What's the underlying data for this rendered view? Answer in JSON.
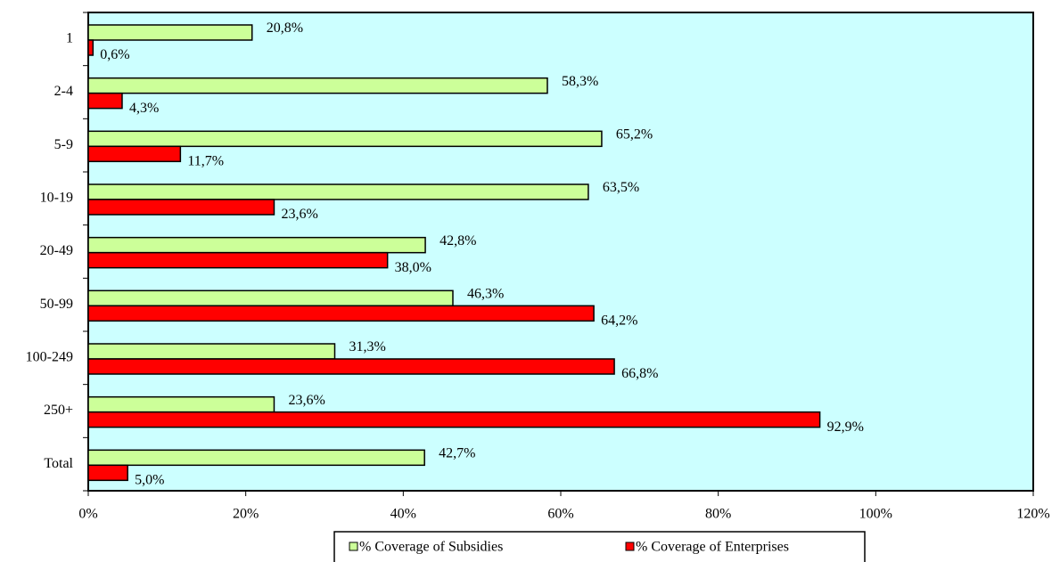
{
  "chart_data": {
    "type": "bar",
    "orientation": "horizontal",
    "categories": [
      "1",
      "2-4",
      "5-9",
      "10-19",
      "20-49",
      "50-99",
      "100-249",
      "250+",
      "Total"
    ],
    "series": [
      {
        "name": "% Coverage of Subsidies",
        "color": "#ccff99",
        "values": [
          20.8,
          58.3,
          65.2,
          63.5,
          42.8,
          46.3,
          31.3,
          23.6,
          42.7
        ],
        "value_labels": [
          "20,8%",
          "58,3%",
          "65,2%",
          "63,5%",
          "42,8%",
          "46,3%",
          "31,3%",
          "23,6%",
          "42,7%"
        ]
      },
      {
        "name": "% Coverage of Enterprises",
        "color": "#ff0000",
        "values": [
          0.6,
          4.3,
          11.7,
          23.6,
          38.0,
          64.2,
          66.8,
          92.9,
          5.0
        ],
        "value_labels": [
          "0,6%",
          "4,3%",
          "11,7%",
          "23,6%",
          "38,0%",
          "64,2%",
          "66,8%",
          "92,9%",
          "5,0%"
        ]
      }
    ],
    "xlim": [
      0,
      120
    ],
    "xticks": [
      {
        "value": 0,
        "label": "0%"
      },
      {
        "value": 20,
        "label": "20%"
      },
      {
        "value": 40,
        "label": "40%"
      },
      {
        "value": 60,
        "label": "60%"
      },
      {
        "value": 80,
        "label": "80%"
      },
      {
        "value": 100,
        "label": "100%"
      },
      {
        "value": 120,
        "label": "120%"
      }
    ],
    "legend": "bottom",
    "plot_background": "#ccffff"
  }
}
